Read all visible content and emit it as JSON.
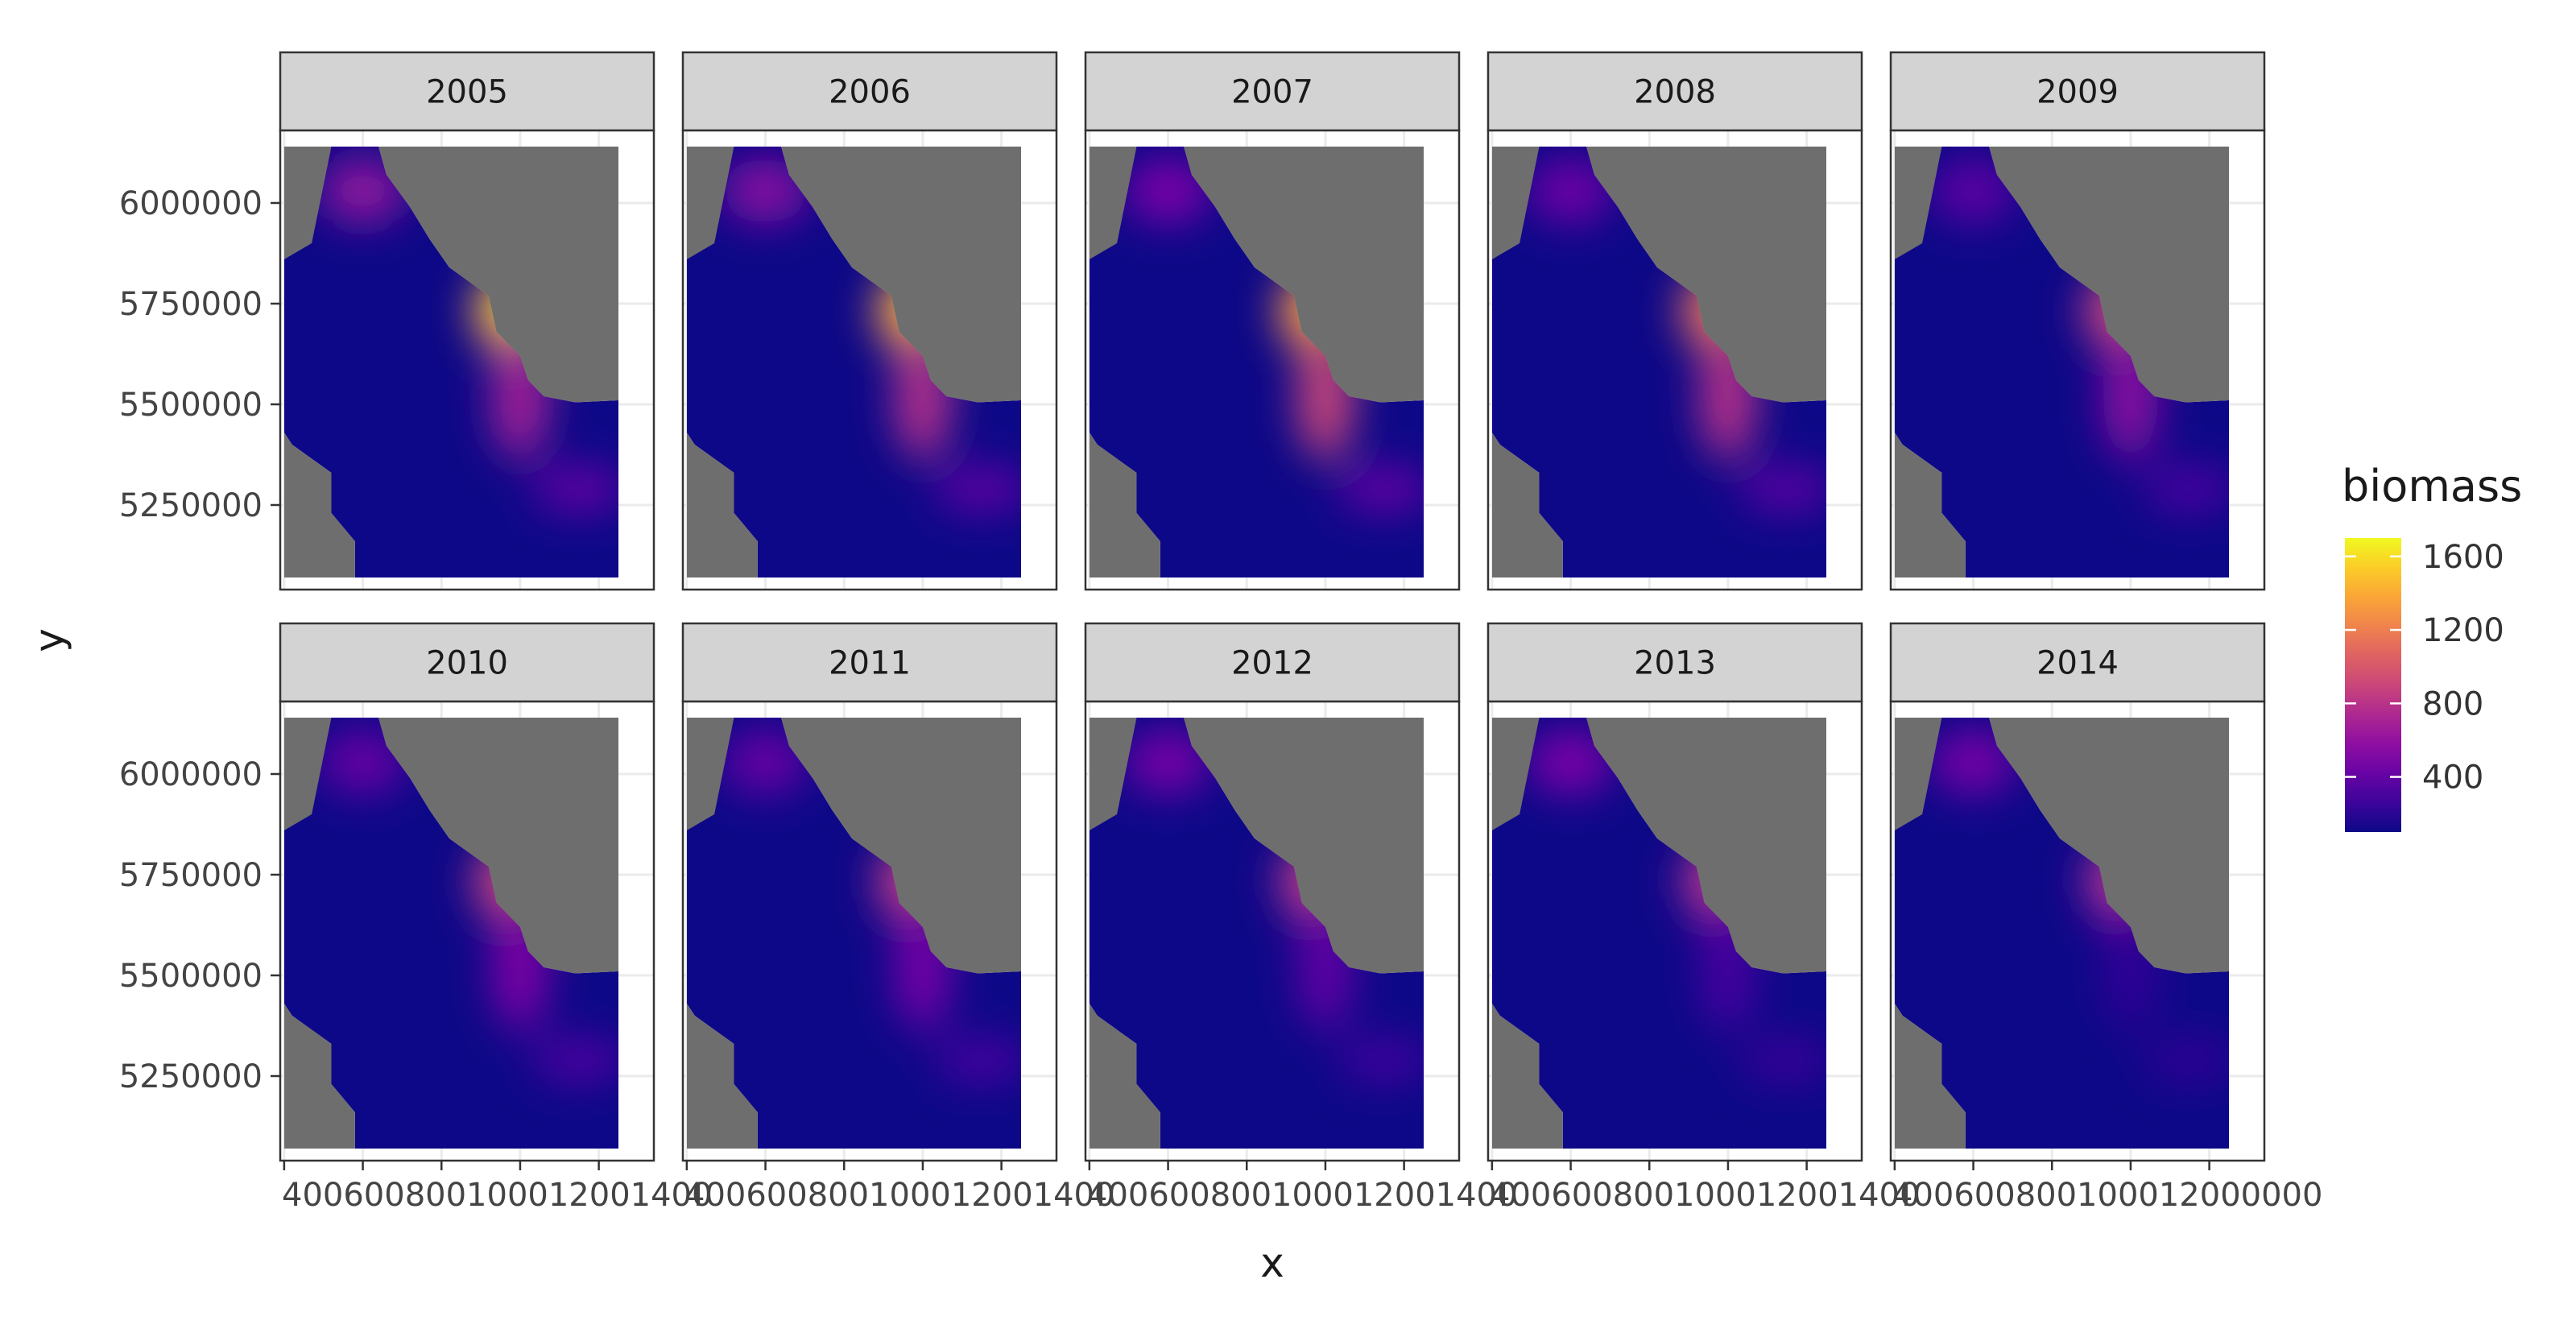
{
  "chart_data": {
    "type": "heatmap",
    "facet_by": "year",
    "xlabel": "x",
    "ylabel": "y",
    "x_ticks": [
      400000,
      600000,
      800000,
      1000000,
      1200000
    ],
    "x_tick_label": "400600800100012001400",
    "x_tick_label_last": "400600800100012000000",
    "y_ticks": [
      5250000,
      5500000,
      5750000,
      6000000
    ],
    "y_tick_labels": [
      "5250000",
      "5500000",
      "5750000",
      "6000000"
    ],
    "xlim": [
      390000,
      1340000
    ],
    "ylim": [
      5040000,
      6180000
    ],
    "legend": {
      "title": "biomass",
      "placement": "right",
      "ticks": [
        400,
        800,
        1200,
        1600
      ],
      "tick_labels": [
        "400",
        "800",
        "1200",
        "1600"
      ],
      "range": [
        100,
        1700
      ],
      "palette": "plasma"
    },
    "colors": {
      "land": "#6e6e6e",
      "strip": "#d3d3d3",
      "grid": "#ebebeb",
      "panel_border": "#333333"
    },
    "panels": [
      {
        "year": "2005",
        "hotspot_peak": 1650,
        "north_peak": 600,
        "ridge_peak": 700,
        "southeast_peak": 420
      },
      {
        "year": "2006",
        "hotspot_peak": 1550,
        "north_peak": 560,
        "ridge_peak": 780,
        "southeast_peak": 400
      },
      {
        "year": "2007",
        "hotspot_peak": 1450,
        "north_peak": 500,
        "ridge_peak": 900,
        "southeast_peak": 420
      },
      {
        "year": "2008",
        "hotspot_peak": 1250,
        "north_peak": 450,
        "ridge_peak": 800,
        "southeast_peak": 380
      },
      {
        "year": "2009",
        "hotspot_peak": 1000,
        "north_peak": 380,
        "ridge_peak": 580,
        "southeast_peak": 320
      },
      {
        "year": "2010",
        "hotspot_peak": 1000,
        "north_peak": 420,
        "ridge_peak": 520,
        "southeast_peak": 330
      },
      {
        "year": "2011",
        "hotspot_peak": 950,
        "north_peak": 420,
        "ridge_peak": 480,
        "southeast_peak": 300
      },
      {
        "year": "2012",
        "hotspot_peak": 950,
        "north_peak": 480,
        "ridge_peak": 400,
        "southeast_peak": 280
      },
      {
        "year": "2013",
        "hotspot_peak": 920,
        "north_peak": 500,
        "ridge_peak": 300,
        "southeast_peak": 250
      },
      {
        "year": "2014",
        "hotspot_peak": 900,
        "north_peak": 480,
        "ridge_peak": 220,
        "southeast_peak": 220
      }
    ]
  }
}
